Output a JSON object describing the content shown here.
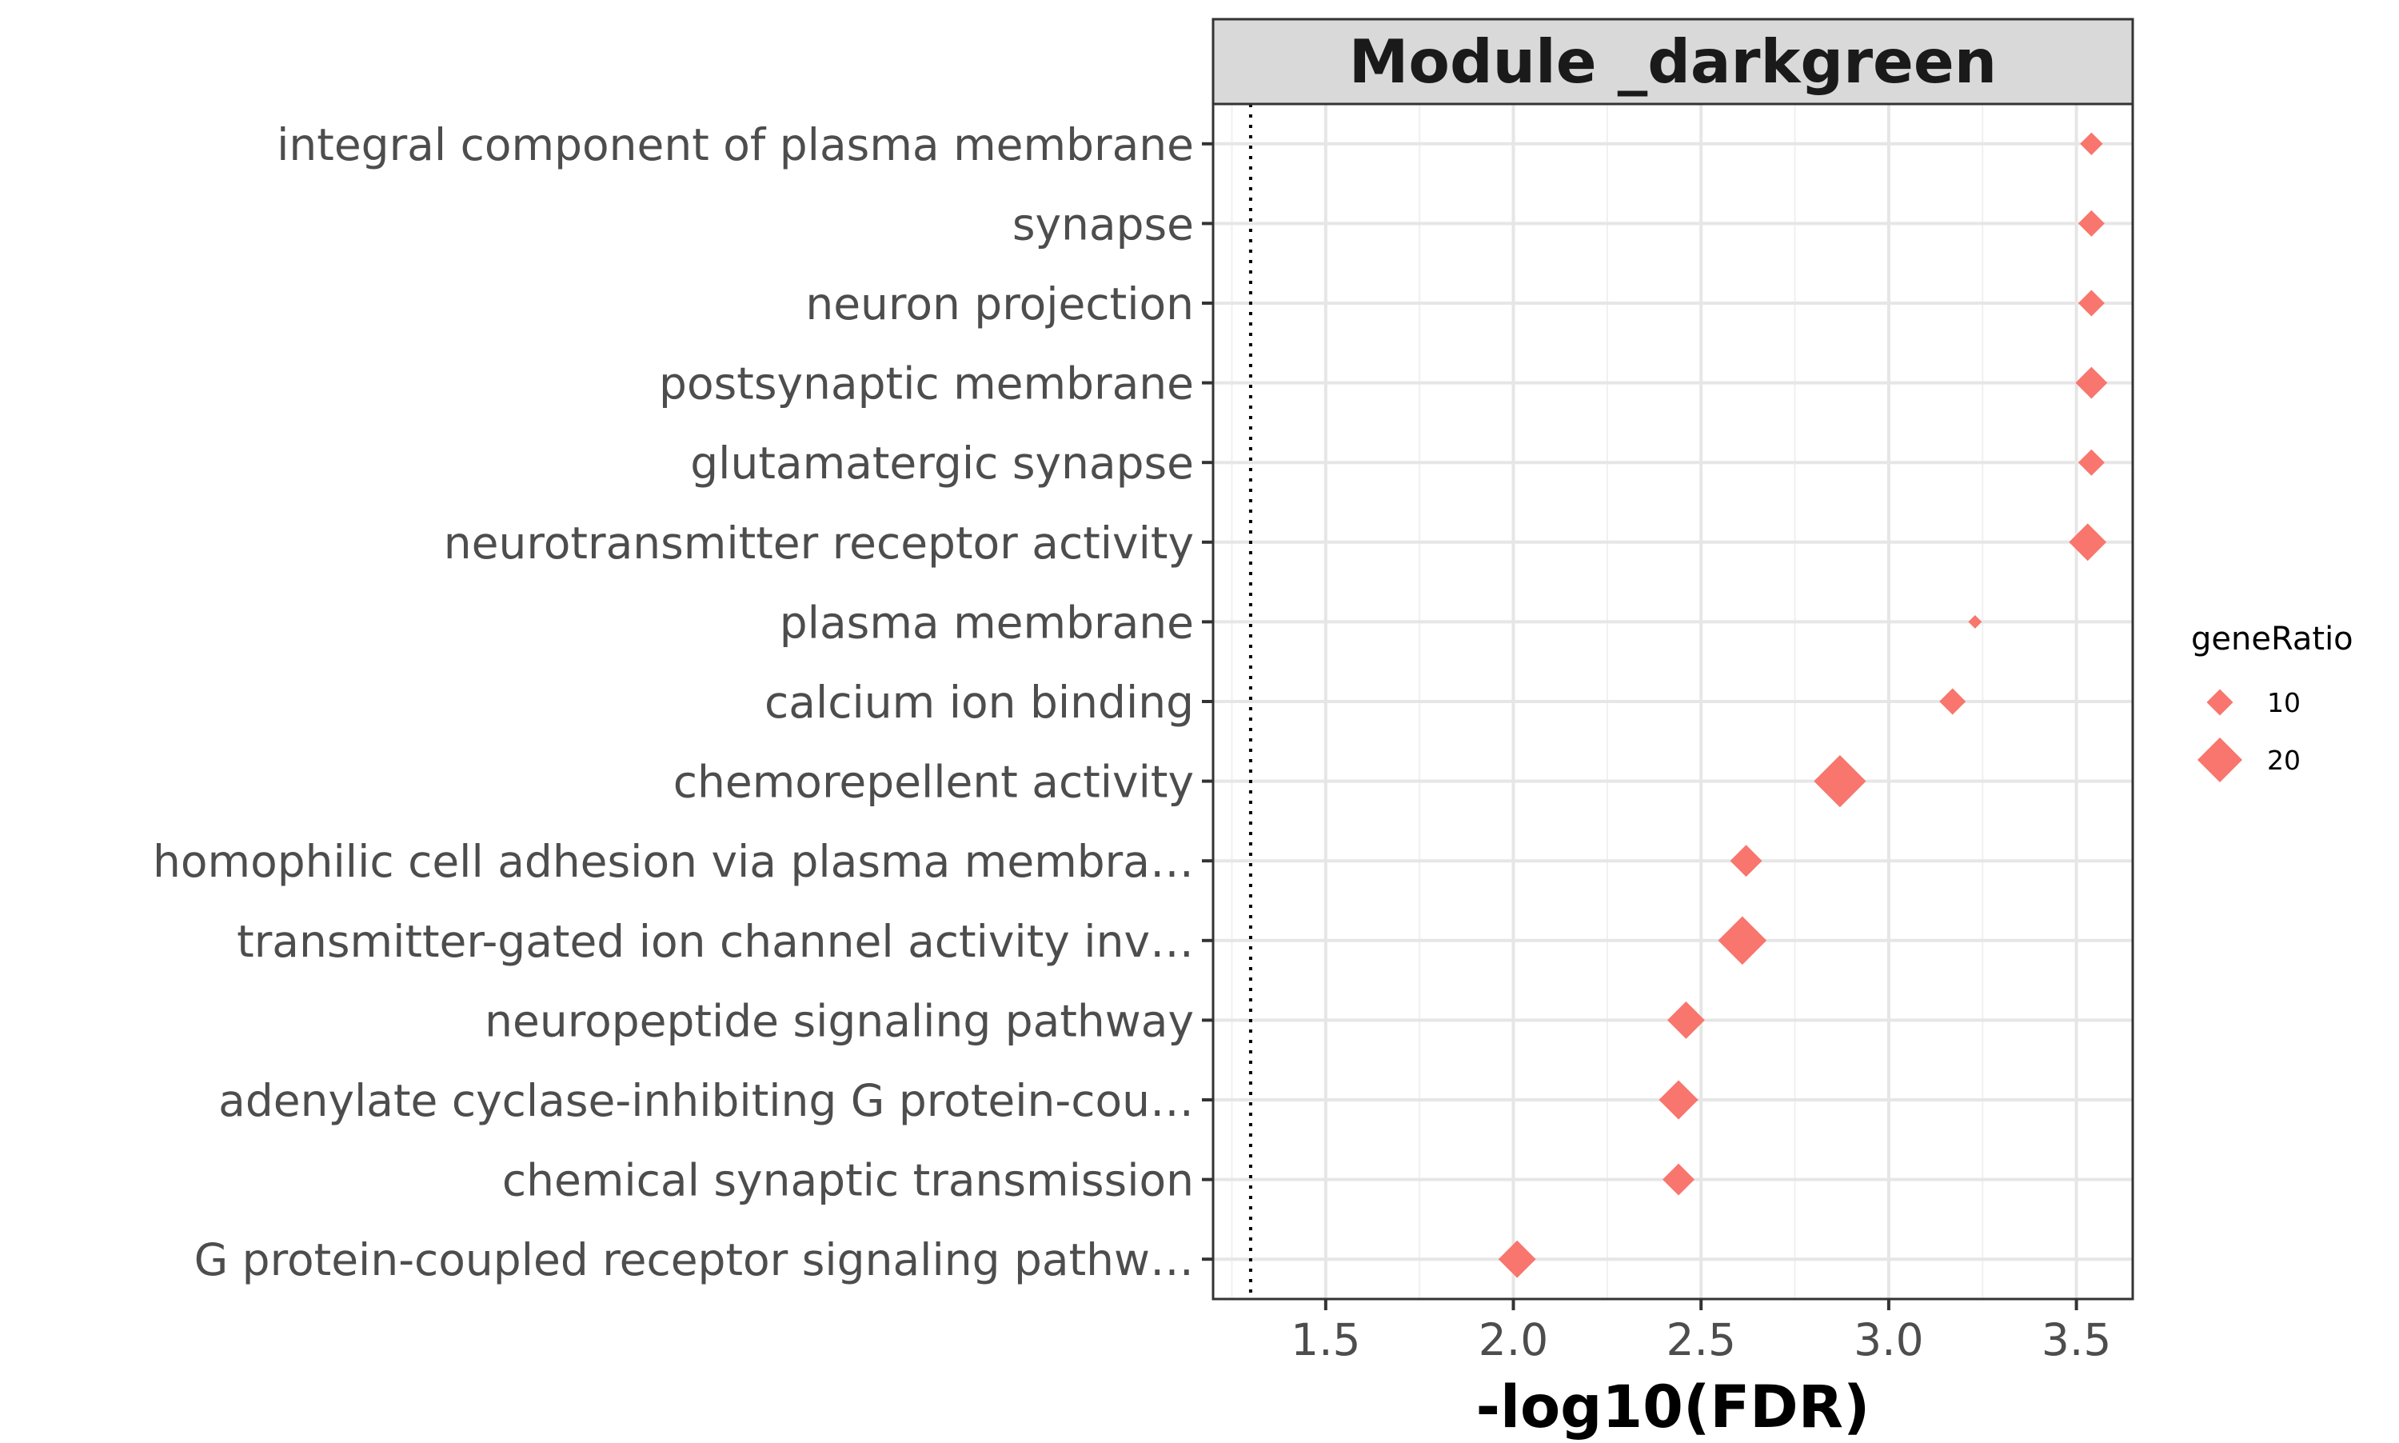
{
  "chart_data": {
    "type": "scatter",
    "strip_title": "Module _darkgreen",
    "xlabel": "-log10(FDR)",
    "ylabel": "",
    "xlim": [
      1.2,
      3.65
    ],
    "x_ticks": [
      1.5,
      2.0,
      2.5,
      3.0,
      3.5
    ],
    "x_tick_labels": [
      "1.5",
      "2.0",
      "2.5",
      "3.0",
      "3.5"
    ],
    "reference_line": 1.3,
    "grid": true,
    "marker": "diamond",
    "color": "#F8766D",
    "categories": [
      "integral component of plasma membrane",
      "synapse",
      "neuron projection",
      "postsynaptic membrane",
      "glutamatergic synapse",
      "neurotransmitter receptor activity",
      "plasma membrane",
      "calcium ion binding",
      "chemorepellent activity",
      "homophilic cell adhesion via plasma membra…",
      "transmitter-gated ion channel activity inv…",
      "neuropeptide signaling pathway",
      "adenylate cyclase-inhibiting G protein-cou…",
      "chemical synaptic transmission",
      "G protein-coupled receptor signaling pathw…"
    ],
    "x": [
      3.54,
      3.54,
      3.54,
      3.54,
      3.54,
      3.53,
      3.23,
      3.17,
      2.87,
      2.62,
      2.61,
      2.46,
      2.44,
      2.44,
      2.01
    ],
    "geneRatio": [
      8,
      10,
      10,
      13,
      10,
      16,
      3,
      10,
      24,
      13,
      22,
      16,
      17,
      13,
      16
    ],
    "legend": {
      "title": "geneRatio",
      "position": "right",
      "entries": [
        {
          "label": "10",
          "value": 10
        },
        {
          "label": "20",
          "value": 20
        }
      ]
    }
  }
}
